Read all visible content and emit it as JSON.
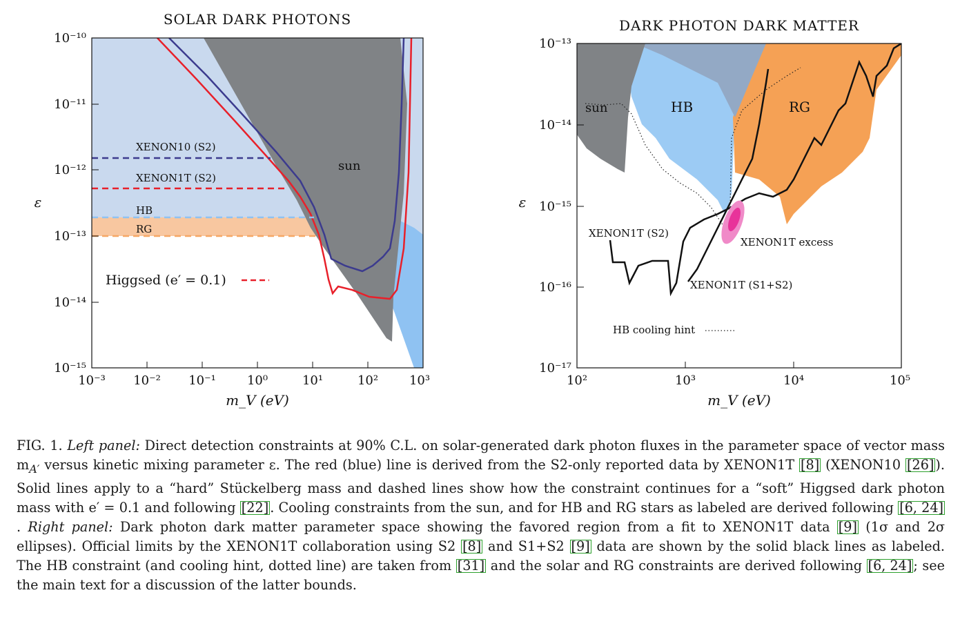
{
  "figure": {
    "left_panel": {
      "title": "SOLAR DARK PHOTONS",
      "xlabel": "m_V (eV)",
      "ylabel": "ε",
      "x_ticks": [
        "10⁻³",
        "10⁻²",
        "10⁻¹",
        "10⁰",
        "10¹",
        "10²",
        "10³"
      ],
      "y_ticks": [
        "10⁻¹⁰",
        "10⁻¹¹",
        "10⁻¹²",
        "10⁻¹³",
        "10⁻¹⁴",
        "10⁻¹⁵"
      ],
      "labels": {
        "xenon10": "XENON10 (S2)",
        "xenon1t": "XENON1T (S2)",
        "hb": "HB",
        "rg": "RG",
        "sun": "sun",
        "higgsed": "Higgsed (e′ = 0.1)"
      }
    },
    "right_panel": {
      "title": "DARK PHOTON DARK MATTER",
      "xlabel": "m_V (eV)",
      "ylabel": "ε",
      "x_ticks": [
        "10²",
        "10³",
        "10⁴",
        "10⁵"
      ],
      "y_ticks": [
        "10⁻¹³",
        "10⁻¹⁴",
        "10⁻¹⁵",
        "10⁻¹⁶",
        "10⁻¹⁷"
      ],
      "labels": {
        "sun": "sun",
        "hb": "HB",
        "rg": "RG",
        "xenon1t_s2": "XENON1T (S2)",
        "xenon1t_excess": "XENON1T excess",
        "xenon1t_s1s2": "XENON1T (S1+S2)",
        "hb_hint": "HB cooling hint"
      }
    },
    "colors": {
      "light_blue": "#c9d9ee",
      "sky_blue": "#8fc2f2",
      "gray": "#7f8285",
      "orange": "#f5a765",
      "light_orange": "#f8c7a0",
      "red": "#e8202a",
      "navy": "#3c3b8e",
      "pink": "#e8339a"
    }
  },
  "caption": {
    "fig_label": "FIG. 1.",
    "left_panel_label": "Left panel:",
    "t1": " Direct detection constraints at 90% C.L. on solar-generated dark photon fluxes in the parameter space of vector mass m",
    "t1_sub": "A′",
    "t2": " versus kinetic mixing parameter ε. The red (blue) line is derived from the S2-only reported data by XENON1T ",
    "ref_8a": "[8]",
    "t3": " (XENON10 ",
    "ref_26": "[26]",
    "t4": "). Solid lines apply to a “hard” Stückelberg mass and dashed lines show how the constraint continues for a “soft” Higgsed dark photon mass with e′ = 0.1 and following ",
    "ref_22": "[22]",
    "t5": ". Cooling constraints from the sun, and for HB and RG stars as labeled are derived following ",
    "ref_6_24a": "[6, 24]",
    "t6": ". ",
    "right_panel_label": "Right panel:",
    "t7": " Dark photon dark matter parameter space showing the favored region from a fit to XENON1T data ",
    "ref_9a": "[9]",
    "t8": " (1σ and 2σ ellipses). Official limits by the XENON1T collaboration using S2 ",
    "ref_8b": "[8]",
    "t9": " and S1+S2 ",
    "ref_9b": "[9]",
    "t10": " data are shown by the solid black lines as labeled. The HB constraint (and cooling hint, dotted line) are taken from ",
    "ref_31": "[31]",
    "t11": " and the solar and RG constraints are derived following ",
    "ref_6_24b": "[6, 24]",
    "t12": "; see the main text for a discussion of the latter bounds."
  }
}
